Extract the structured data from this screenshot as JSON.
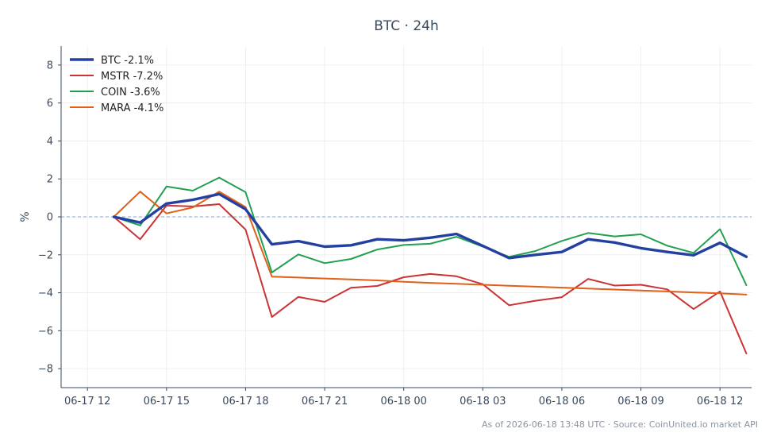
{
  "chart_data": {
    "type": "line",
    "title": "BTC · 24h",
    "ylabel": "%",
    "xlabel": "",
    "ylim": [
      -9,
      9
    ],
    "yticks": [
      8,
      6,
      4,
      2,
      0,
      -2,
      -4,
      -6,
      -8
    ],
    "ytick_labels": [
      "8",
      "6",
      "4",
      "2",
      "0",
      "−2",
      "−4",
      "−6",
      "−8"
    ],
    "xlim": [
      -1,
      25.2
    ],
    "xticks": [
      0,
      3,
      6,
      9,
      12,
      15,
      18,
      21,
      24
    ],
    "xtick_labels": [
      "06-17 12",
      "06-17 15",
      "06-17 18",
      "06-17 21",
      "06-18 00",
      "06-18 03",
      "06-18 06",
      "06-18 09",
      "06-18 12"
    ],
    "x": [
      1,
      2,
      3,
      4,
      5,
      6,
      7,
      8,
      9,
      10,
      11,
      12,
      13,
      14,
      15,
      16,
      17,
      18,
      19,
      20,
      21,
      22,
      23,
      24,
      25
    ],
    "grid": true,
    "zero_line": true,
    "legend_position": "top-left",
    "footer": "As of 2026-06-18 13:48 UTC · Source: CoinUnited.io market API",
    "series": [
      {
        "name": "BTC -2.1%",
        "color": "#2340a0",
        "values": [
          0,
          -0.3,
          0.7,
          0.9,
          1.2,
          0.4,
          -1.45,
          -1.28,
          -1.57,
          -1.5,
          -1.18,
          -1.24,
          -1.1,
          -0.9,
          -1.53,
          -2.17,
          -2.0,
          -1.85,
          -1.18,
          -1.35,
          -1.65,
          -1.85,
          -2.02,
          -1.37,
          -2.1
        ]
      },
      {
        "name": "MSTR -7.2%",
        "color": "#cc3333",
        "values": [
          0,
          -1.18,
          0.6,
          0.55,
          0.67,
          -0.67,
          -5.28,
          -4.22,
          -4.48,
          -3.74,
          -3.64,
          -3.18,
          -3.01,
          -3.13,
          -3.55,
          -4.66,
          -4.42,
          -4.23,
          -3.27,
          -3.62,
          -3.58,
          -3.82,
          -4.86,
          -3.93,
          -7.2
        ]
      },
      {
        "name": "COIN -3.6%",
        "color": "#22a050",
        "values": [
          0,
          -0.45,
          1.6,
          1.38,
          2.07,
          1.3,
          -2.93,
          -1.98,
          -2.44,
          -2.22,
          -1.72,
          -1.48,
          -1.42,
          -1.05,
          -1.57,
          -2.11,
          -1.8,
          -1.27,
          -0.85,
          -1.03,
          -0.92,
          -1.52,
          -1.9,
          -0.65,
          -3.6
        ]
      },
      {
        "name": "MARA -4.1%",
        "color": "#e06018",
        "values": [
          0,
          1.33,
          0.18,
          0.5,
          1.33,
          0.52,
          -3.15,
          -3.2,
          -3.25,
          -3.3,
          -3.35,
          -3.42,
          -3.48,
          -3.53,
          -3.58,
          -3.63,
          -3.68,
          -3.73,
          -3.78,
          -3.83,
          -3.88,
          -3.93,
          -3.98,
          -4.03,
          -4.1
        ]
      }
    ]
  }
}
